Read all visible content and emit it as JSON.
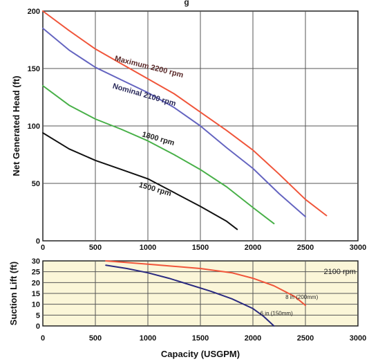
{
  "title_fragment": "g",
  "chart_data": [
    {
      "type": "line",
      "xlabel": "",
      "ylabel": "Net Generated Head  (ft)",
      "xlim": [
        0,
        3000
      ],
      "ylim": [
        0,
        200
      ],
      "x_ticks": [
        "0",
        "500",
        "1000",
        "1500",
        "2000",
        "2500",
        "3000"
      ],
      "y_ticks": [
        "0",
        "50",
        "100",
        "150",
        "200"
      ],
      "grid": true,
      "series": [
        {
          "name": "Maximum 2200 rpm",
          "color": "#f0553a",
          "x": [
            0,
            250,
            500,
            750,
            1000,
            1250,
            1500,
            1750,
            2000,
            2250,
            2500,
            2700
          ],
          "y": [
            200,
            183,
            167,
            154,
            141,
            128,
            112,
            96,
            79,
            58,
            36,
            22
          ]
        },
        {
          "name": "Nominal 2100 rpm",
          "color": "#6464c0",
          "x": [
            0,
            250,
            500,
            750,
            1000,
            1250,
            1500,
            1750,
            2000,
            2250,
            2500
          ],
          "y": [
            185,
            166,
            151,
            140,
            129,
            116,
            100,
            81,
            63,
            41,
            21
          ]
        },
        {
          "name": "1800 rpm",
          "color": "#48b048",
          "x": [
            0,
            250,
            500,
            750,
            1000,
            1250,
            1500,
            1750,
            2000,
            2200
          ],
          "y": [
            135,
            118,
            106,
            97,
            87,
            75,
            62,
            47,
            29,
            15
          ]
        },
        {
          "name": "1500 rpm",
          "color": "#111111",
          "x": [
            0,
            250,
            500,
            750,
            1000,
            1250,
            1500,
            1750,
            1850
          ],
          "y": [
            94,
            80,
            70,
            62,
            54,
            42,
            30,
            17,
            10
          ]
        }
      ]
    },
    {
      "type": "line",
      "xlabel": "Capacity (USGPM)",
      "ylabel": "Suction Lift (ft)",
      "xlim": [
        0,
        3000
      ],
      "ylim": [
        0,
        30
      ],
      "x_ticks": [
        "0",
        "500",
        "1000",
        "1500",
        "2000",
        "2500",
        "3000"
      ],
      "y_ticks": [
        "0",
        "5",
        "10",
        "15",
        "20",
        "25",
        "30"
      ],
      "grid": true,
      "annotation": "2100 rpm",
      "series": [
        {
          "name": "8 in (200mm)",
          "color": "#f0553a",
          "x": [
            600,
            1000,
            1500,
            1800,
            2000,
            2200,
            2400,
            2500
          ],
          "y": [
            30,
            28.5,
            26.5,
            24.5,
            22,
            18.5,
            13.5,
            9.5
          ]
        },
        {
          "name": "6 in (150mm)",
          "color": "#2a2a80",
          "x": [
            600,
            800,
            1000,
            1200,
            1400,
            1600,
            1800,
            2000,
            2100,
            2200
          ],
          "y": [
            28,
            26.5,
            24.5,
            22,
            19,
            16,
            12.5,
            8,
            4.5,
            0
          ]
        }
      ]
    }
  ]
}
